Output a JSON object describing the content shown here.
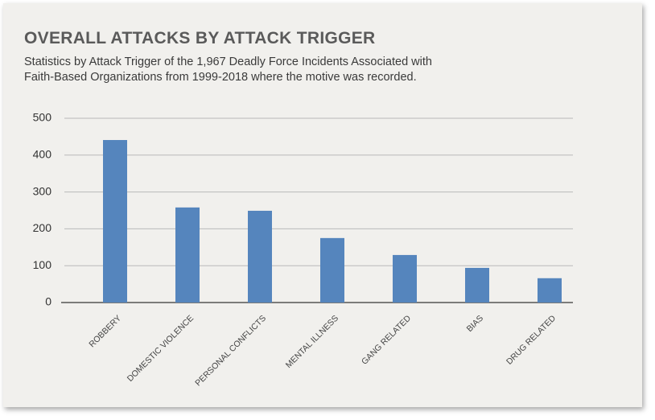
{
  "chart_data": {
    "type": "bar",
    "title": "OVERALL ATTACKS BY ATTACK TRIGGER",
    "subtitle": "Statistics by Attack Trigger of the 1,967 Deadly Force Incidents Associated with Faith-Based Organizations from 1999-2018 where the motive was recorded.",
    "categories": [
      "ROBBERY",
      "DOMESTIC VIOLENCE",
      "PERSONAL CONFLICTS",
      "MENTAL ILLNESS",
      "GANG RELATED",
      "BIAS",
      "DRUG RELATED"
    ],
    "values": [
      441,
      258,
      249,
      175,
      129,
      94,
      66
    ],
    "color": "#5585bd",
    "ylim": [
      0,
      500
    ],
    "yticks": [
      0,
      100,
      200,
      300,
      400,
      500
    ],
    "grid": true
  }
}
